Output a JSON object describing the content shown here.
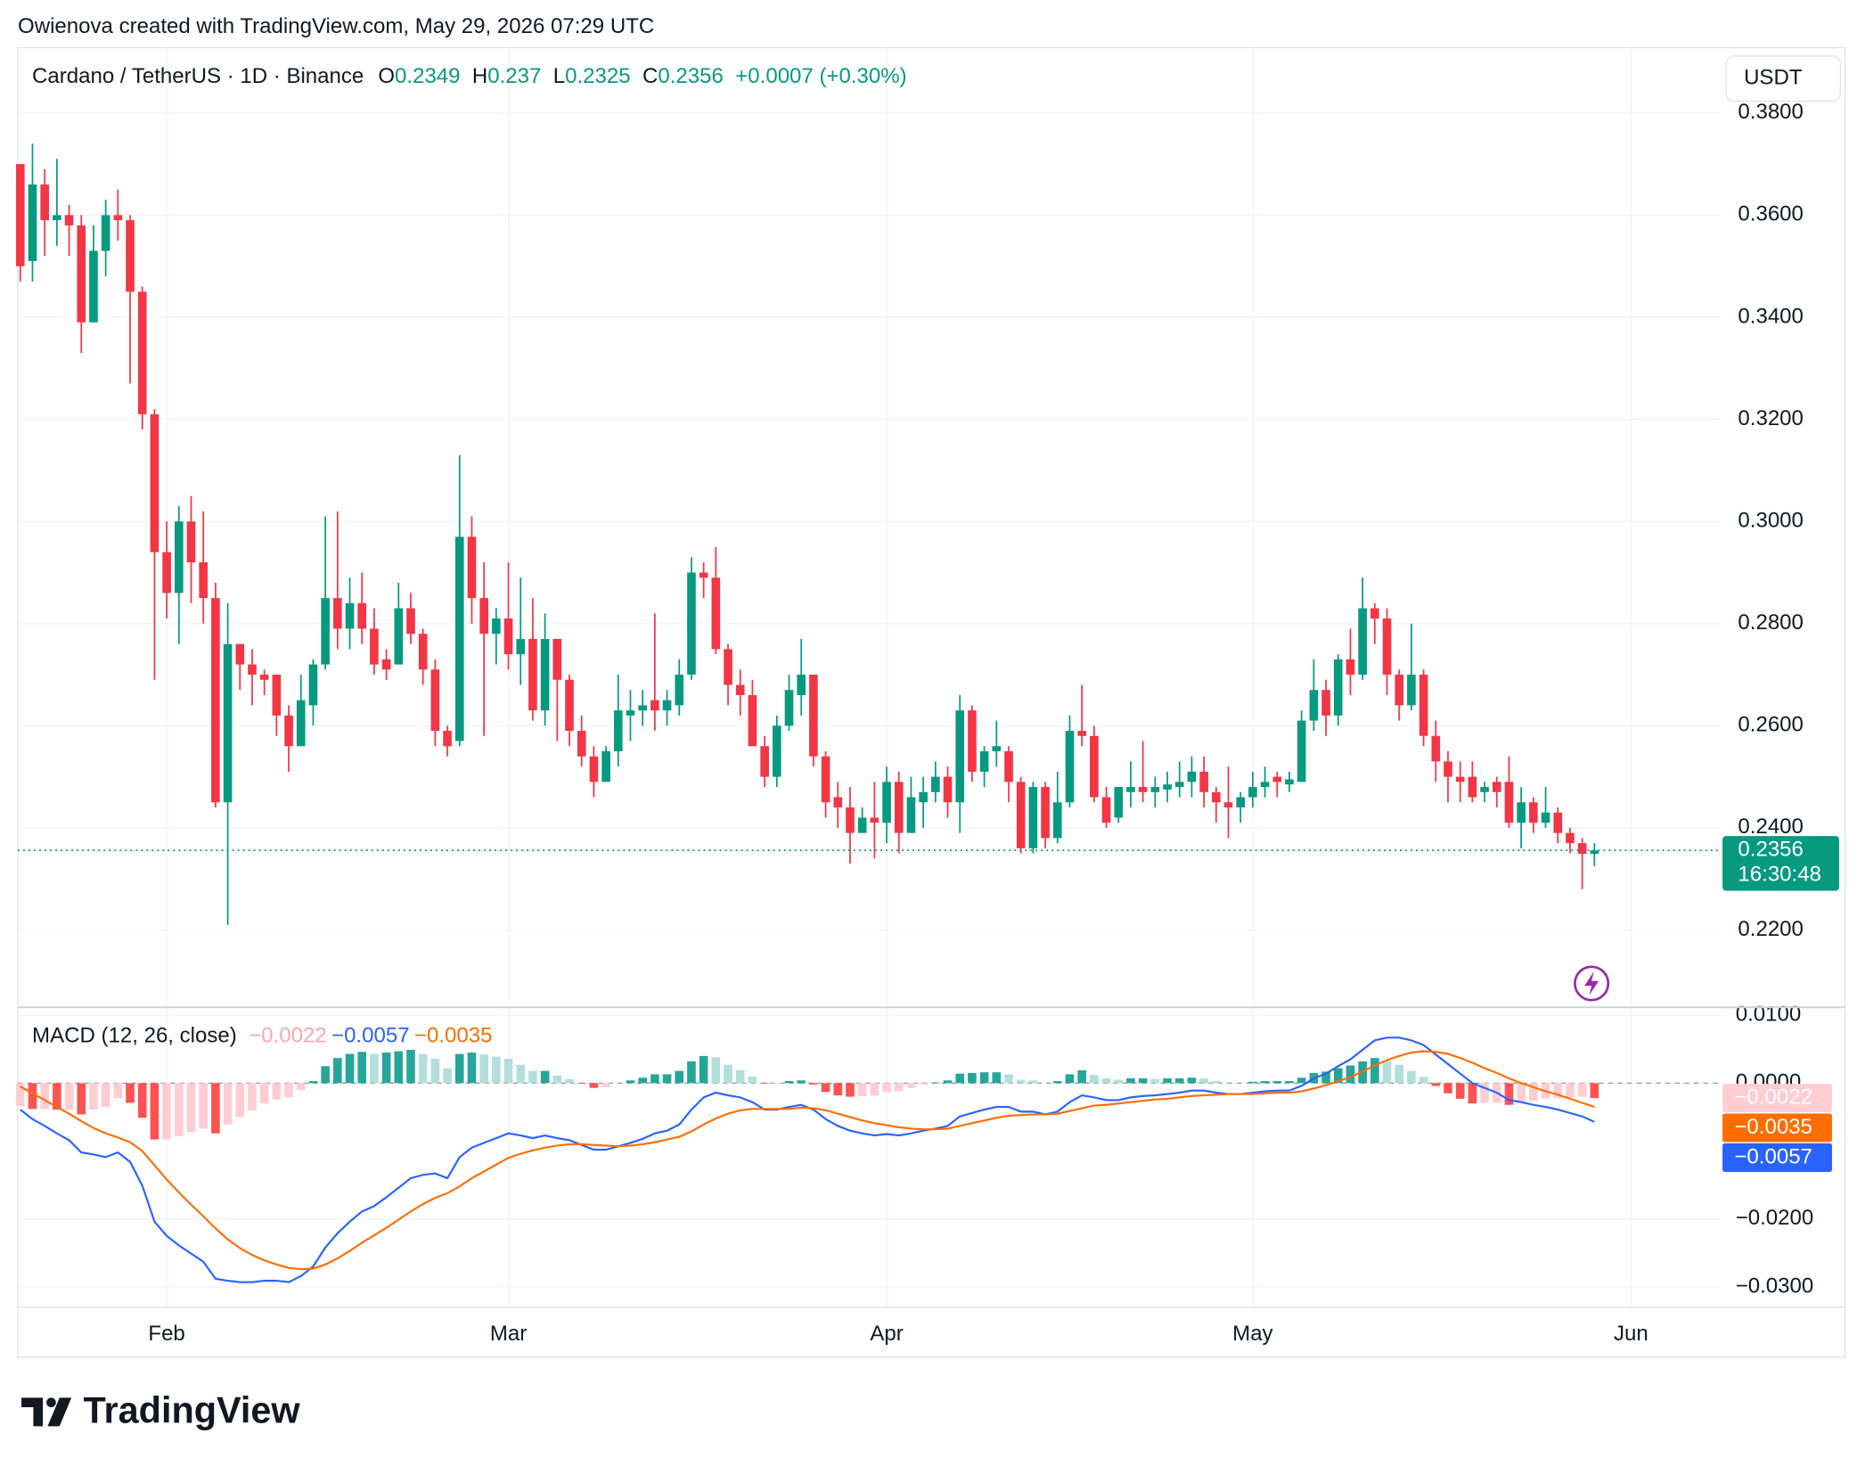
{
  "chart_data": {
    "type": "candlestick",
    "header": "Owienova created with TradingView.com, May 29, 2026 07:29 UTC",
    "title": "Cardano / TetherUS · 1D · Binance",
    "ohlc_labels": [
      "O",
      "H",
      "L",
      "C"
    ],
    "change_label": "+0.0007 (+0.30%)",
    "currency": "USDT",
    "countdown": "16:30:48",
    "brand": "TradingView",
    "up_color": "#089981",
    "down_color": "#f23645",
    "grid": true,
    "xlim": [
      -0.2,
      139.3
    ],
    "xticks": [
      {
        "value": 12,
        "label": "Feb"
      },
      {
        "value": 40,
        "label": "Mar"
      },
      {
        "value": 71,
        "label": "Apr"
      },
      {
        "value": 101,
        "label": "May"
      },
      {
        "value": 132,
        "label": "Jun"
      }
    ],
    "ylim": [
      0.2051,
      0.3928
    ],
    "yticks": [
      {
        "value": 0.38,
        "label": "0.3800"
      },
      {
        "value": 0.36,
        "label": "0.3600"
      },
      {
        "value": 0.34,
        "label": "0.3400"
      },
      {
        "value": 0.32,
        "label": "0.3200"
      },
      {
        "value": 0.3,
        "label": "0.3000"
      },
      {
        "value": 0.28,
        "label": "0.2800"
      },
      {
        "value": 0.26,
        "label": "0.2600"
      },
      {
        "value": 0.24,
        "label": "0.2400"
      },
      {
        "value": 0.22,
        "label": "0.2200"
      }
    ],
    "open": [
      0.37,
      0.351,
      0.366,
      0.359,
      0.36,
      0.358,
      0.339,
      0.353,
      0.36,
      0.359,
      0.345,
      0.321,
      0.294,
      0.286,
      0.3,
      0.292,
      0.285,
      0.245,
      0.276,
      0.272,
      0.27,
      0.27,
      0.262,
      0.256,
      0.264,
      0.272,
      0.285,
      0.279,
      0.284,
      0.279,
      0.273,
      0.272,
      0.283,
      0.278,
      0.271,
      0.259,
      0.257,
      0.297,
      0.285,
      0.278,
      0.281,
      0.274,
      0.277,
      0.263,
      0.277,
      0.269,
      0.259,
      0.254,
      0.249,
      0.255,
      0.262,
      0.263,
      0.265,
      0.263,
      0.264,
      0.27,
      0.29,
      0.289,
      0.275,
      0.268,
      0.266,
      0.256,
      0.25,
      0.26,
      0.266,
      0.27,
      0.254,
      0.246,
      0.244,
      0.239,
      0.242,
      0.241,
      0.249,
      0.239,
      0.245,
      0.247,
      0.25,
      0.245,
      0.263,
      0.251,
      0.255,
      0.255,
      0.249,
      0.236,
      0.248,
      0.238,
      0.245,
      0.259,
      0.258,
      0.246,
      0.242,
      0.247,
      0.248,
      0.247,
      0.2475,
      0.248,
      0.249,
      0.251,
      0.247,
      0.245,
      0.244,
      0.246,
      0.248,
      0.25,
      0.2485,
      0.249,
      0.261,
      0.267,
      0.262,
      0.273,
      0.27,
      0.283,
      0.281,
      0.27,
      0.264,
      0.27,
      0.258,
      0.253,
      0.25,
      0.25,
      0.247,
      0.249,
      0.249,
      0.241,
      0.245,
      0.241,
      0.243,
      0.239,
      0.237,
      0.2349
    ],
    "high": [
      0.37,
      0.374,
      0.369,
      0.371,
      0.362,
      0.36,
      0.358,
      0.363,
      0.365,
      0.36,
      0.346,
      0.322,
      0.3,
      0.303,
      0.305,
      0.302,
      0.288,
      0.284,
      0.276,
      0.275,
      0.271,
      0.27,
      0.264,
      0.27,
      0.273,
      0.301,
      0.302,
      0.289,
      0.29,
      0.283,
      0.275,
      0.288,
      0.286,
      0.279,
      0.273,
      0.26,
      0.313,
      0.301,
      0.292,
      0.283,
      0.292,
      0.289,
      0.285,
      0.282,
      0.277,
      0.27,
      0.262,
      0.256,
      0.256,
      0.27,
      0.267,
      0.267,
      0.282,
      0.267,
      0.273,
      0.293,
      0.292,
      0.295,
      0.276,
      0.271,
      0.269,
      0.258,
      0.262,
      0.27,
      0.277,
      0.27,
      0.255,
      0.249,
      0.248,
      0.244,
      0.249,
      0.252,
      0.251,
      0.25,
      0.25,
      0.253,
      0.252,
      0.266,
      0.264,
      0.256,
      0.261,
      0.256,
      0.25,
      0.249,
      0.249,
      0.251,
      0.262,
      0.268,
      0.26,
      0.248,
      0.248,
      0.253,
      0.257,
      0.25,
      0.251,
      0.253,
      0.254,
      0.254,
      0.248,
      0.252,
      0.247,
      0.251,
      0.252,
      0.251,
      0.251,
      0.263,
      0.273,
      0.269,
      0.274,
      0.279,
      0.289,
      0.284,
      0.283,
      0.271,
      0.28,
      0.271,
      0.261,
      0.255,
      0.253,
      0.253,
      0.249,
      0.25,
      0.254,
      0.248,
      0.246,
      0.248,
      0.244,
      0.24,
      0.238,
      0.237
    ],
    "low": [
      0.347,
      0.347,
      0.352,
      0.354,
      0.352,
      0.333,
      0.339,
      0.348,
      0.355,
      0.327,
      0.318,
      0.269,
      0.281,
      0.276,
      0.284,
      0.28,
      0.244,
      0.221,
      0.267,
      0.264,
      0.266,
      0.258,
      0.251,
      0.256,
      0.26,
      0.271,
      0.275,
      0.275,
      0.276,
      0.27,
      0.269,
      0.272,
      0.276,
      0.268,
      0.256,
      0.254,
      0.256,
      0.28,
      0.258,
      0.272,
      0.271,
      0.268,
      0.261,
      0.26,
      0.257,
      0.256,
      0.252,
      0.246,
      0.249,
      0.252,
      0.257,
      0.26,
      0.259,
      0.26,
      0.262,
      0.269,
      0.285,
      0.274,
      0.264,
      0.262,
      0.256,
      0.248,
      0.248,
      0.259,
      0.262,
      0.252,
      0.242,
      0.24,
      0.233,
      0.239,
      0.234,
      0.237,
      0.235,
      0.239,
      0.24,
      0.245,
      0.242,
      0.239,
      0.249,
      0.248,
      0.252,
      0.245,
      0.235,
      0.235,
      0.236,
      0.237,
      0.244,
      0.256,
      0.245,
      0.24,
      0.241,
      0.244,
      0.245,
      0.244,
      0.245,
      0.246,
      0.246,
      0.244,
      0.241,
      0.238,
      0.241,
      0.244,
      0.246,
      0.246,
      0.247,
      0.249,
      0.259,
      0.258,
      0.26,
      0.266,
      0.269,
      0.276,
      0.266,
      0.261,
      0.263,
      0.256,
      0.249,
      0.245,
      0.245,
      0.245,
      0.245,
      0.244,
      0.24,
      0.236,
      0.239,
      0.24,
      0.237,
      0.235,
      0.228,
      0.2325
    ],
    "close": [
      0.35,
      0.366,
      0.359,
      0.36,
      0.358,
      0.339,
      0.353,
      0.36,
      0.359,
      0.345,
      0.321,
      0.294,
      0.286,
      0.3,
      0.292,
      0.285,
      0.245,
      0.276,
      0.272,
      0.27,
      0.269,
      0.262,
      0.256,
      0.265,
      0.272,
      0.285,
      0.279,
      0.284,
      0.279,
      0.272,
      0.271,
      0.283,
      0.278,
      0.271,
      0.259,
      0.256,
      0.297,
      0.285,
      0.278,
      0.281,
      0.274,
      0.277,
      0.263,
      0.277,
      0.269,
      0.259,
      0.254,
      0.249,
      0.255,
      0.263,
      0.263,
      0.264,
      0.263,
      0.265,
      0.27,
      0.29,
      0.289,
      0.275,
      0.268,
      0.266,
      0.256,
      0.25,
      0.26,
      0.267,
      0.27,
      0.254,
      0.245,
      0.244,
      0.239,
      0.242,
      0.241,
      0.249,
      0.239,
      0.246,
      0.247,
      0.25,
      0.245,
      0.263,
      0.251,
      0.255,
      0.256,
      0.249,
      0.236,
      0.248,
      0.238,
      0.245,
      0.259,
      0.258,
      0.246,
      0.241,
      0.248,
      0.248,
      0.247,
      0.248,
      0.2485,
      0.249,
      0.251,
      0.247,
      0.245,
      0.244,
      0.246,
      0.248,
      0.249,
      0.249,
      0.2495,
      0.261,
      0.267,
      0.262,
      0.273,
      0.27,
      0.283,
      0.281,
      0.27,
      0.264,
      0.27,
      0.258,
      0.253,
      0.25,
      0.249,
      0.246,
      0.248,
      0.247,
      0.241,
      0.245,
      0.241,
      0.243,
      0.239,
      0.237,
      0.2349,
      0.2356
    ],
    "indicator": {
      "title": "MACD (12, 26, close)",
      "ylim": [
        -0.033,
        0.011
      ],
      "yticks": [
        {
          "value": 0.01,
          "label": "0.0100"
        },
        {
          "value": 0,
          "label": "0.0000"
        },
        {
          "value": -0.02,
          "label": "−0.0200"
        },
        {
          "value": -0.03,
          "label": "−0.0300"
        }
      ],
      "series": [
        {
          "type": "histogram",
          "colors": [
            "#26a69a",
            "#b2dfdb",
            "#ff5252",
            "#ffcdd2"
          ],
          "color": "#f7a9b4",
          "last_label": "−0.0022",
          "values": [
            -0.0034,
            -0.0038,
            -0.0038,
            -0.0039,
            -0.0039,
            -0.0046,
            -0.0039,
            -0.0035,
            -0.0022,
            -0.0029,
            -0.0051,
            -0.0083,
            -0.0083,
            -0.0078,
            -0.0072,
            -0.0067,
            -0.0074,
            -0.0061,
            -0.005,
            -0.004,
            -0.003,
            -0.0024,
            -0.0021,
            -0.001,
            0.0003,
            0.0025,
            0.0037,
            0.0043,
            0.0046,
            0.0043,
            0.0045,
            0.0047,
            0.0049,
            0.0043,
            0.0036,
            0.0022,
            0.0043,
            0.0045,
            0.0042,
            0.0039,
            0.0036,
            0.0027,
            0.0018,
            0.0018,
            0.0011,
            0.0006,
            -0.0001,
            -0.0007,
            -0.0006,
            0.0,
            0.0004,
            0.0008,
            0.0013,
            0.0013,
            0.0018,
            0.0032,
            0.004,
            0.0038,
            0.0027,
            0.0019,
            0.001,
            -0.0001,
            -0.0001,
            0.0003,
            0.0004,
            -0.0002,
            -0.0013,
            -0.0018,
            -0.002,
            -0.0019,
            -0.0018,
            -0.0013,
            -0.0012,
            -0.0007,
            -0.0002,
            0.0001,
            0.0004,
            0.0014,
            0.0015,
            0.0016,
            0.0016,
            0.0013,
            0.0005,
            0.0004,
            0.0,
            0.0003,
            0.0013,
            0.0019,
            0.0012,
            0.0007,
            0.0005,
            0.0007,
            0.0007,
            0.0006,
            0.0007,
            0.0007,
            0.0008,
            0.0007,
            0.0003,
            0.0,
            0.0,
            0.0002,
            0.0003,
            0.0003,
            0.0003,
            0.0008,
            0.0015,
            0.0017,
            0.0022,
            0.0026,
            0.0032,
            0.0037,
            0.0033,
            0.0027,
            0.0018,
            0.0009,
            -0.0004,
            -0.0015,
            -0.0023,
            -0.003,
            -0.0029,
            -0.0029,
            -0.0032,
            -0.0028,
            -0.0026,
            -0.0023,
            -0.0022,
            -0.0021,
            -0.002,
            -0.0022
          ]
        },
        {
          "type": "line",
          "color": "#2962ff",
          "last_label": "−0.0057",
          "values": [
            -0.0039,
            -0.0053,
            -0.0063,
            -0.0074,
            -0.0084,
            -0.0102,
            -0.0105,
            -0.0109,
            -0.0102,
            -0.0116,
            -0.0151,
            -0.0204,
            -0.0225,
            -0.0239,
            -0.0251,
            -0.0263,
            -0.0288,
            -0.0291,
            -0.0293,
            -0.0293,
            -0.0291,
            -0.0291,
            -0.0293,
            -0.0284,
            -0.027,
            -0.0242,
            -0.0221,
            -0.0204,
            -0.0189,
            -0.0181,
            -0.0168,
            -0.0154,
            -0.014,
            -0.0135,
            -0.0133,
            -0.014,
            -0.0109,
            -0.0095,
            -0.0088,
            -0.0081,
            -0.0074,
            -0.0077,
            -0.0081,
            -0.0077,
            -0.0081,
            -0.0084,
            -0.0091,
            -0.0098,
            -0.0098,
            -0.0093,
            -0.0088,
            -0.0082,
            -0.0074,
            -0.007,
            -0.0061,
            -0.0039,
            -0.0021,
            -0.0014,
            -0.0018,
            -0.0021,
            -0.0028,
            -0.0039,
            -0.0039,
            -0.0035,
            -0.0032,
            -0.0039,
            -0.0053,
            -0.0063,
            -0.007,
            -0.0074,
            -0.0077,
            -0.0075,
            -0.0077,
            -0.0074,
            -0.007,
            -0.0067,
            -0.0063,
            -0.0049,
            -0.0044,
            -0.0039,
            -0.0035,
            -0.0035,
            -0.0042,
            -0.0042,
            -0.0046,
            -0.0042,
            -0.0028,
            -0.0018,
            -0.0021,
            -0.0025,
            -0.0025,
            -0.0021,
            -0.0019,
            -0.0018,
            -0.0016,
            -0.0014,
            -0.0011,
            -0.0011,
            -0.0014,
            -0.0016,
            -0.0016,
            -0.0014,
            -0.0012,
            -0.0011,
            -0.0011,
            -0.0004,
            0.0007,
            0.0014,
            0.0025,
            0.0035,
            0.0049,
            0.0063,
            0.0067,
            0.0067,
            0.0063,
            0.0056,
            0.0042,
            0.0028,
            0.0014,
            0.0,
            -0.0007,
            -0.0014,
            -0.0025,
            -0.0028,
            -0.0032,
            -0.0035,
            -0.0039,
            -0.0044,
            -0.0049,
            -0.0057
          ]
        },
        {
          "type": "line",
          "color": "#ff6d00",
          "last_label": "−0.0035",
          "values": [
            -0.0005,
            -0.0015,
            -0.0025,
            -0.0035,
            -0.0045,
            -0.0056,
            -0.0066,
            -0.0074,
            -0.008,
            -0.0087,
            -0.01,
            -0.0121,
            -0.0142,
            -0.0161,
            -0.0179,
            -0.0196,
            -0.0214,
            -0.023,
            -0.0243,
            -0.0253,
            -0.0261,
            -0.0267,
            -0.0272,
            -0.0274,
            -0.0273,
            -0.0267,
            -0.0258,
            -0.0247,
            -0.0235,
            -0.0224,
            -0.0213,
            -0.0201,
            -0.0189,
            -0.0178,
            -0.0169,
            -0.0162,
            -0.0152,
            -0.014,
            -0.013,
            -0.012,
            -0.011,
            -0.0104,
            -0.0099,
            -0.0095,
            -0.0092,
            -0.009,
            -0.009,
            -0.0091,
            -0.0092,
            -0.0093,
            -0.0092,
            -0.009,
            -0.0087,
            -0.0083,
            -0.0079,
            -0.0071,
            -0.0061,
            -0.0052,
            -0.0045,
            -0.004,
            -0.0038,
            -0.0038,
            -0.0038,
            -0.0038,
            -0.0036,
            -0.0037,
            -0.004,
            -0.0045,
            -0.005,
            -0.0055,
            -0.0059,
            -0.0062,
            -0.0065,
            -0.0067,
            -0.0068,
            -0.0068,
            -0.0067,
            -0.0063,
            -0.0059,
            -0.0055,
            -0.0051,
            -0.0048,
            -0.0047,
            -0.0046,
            -0.0046,
            -0.0045,
            -0.0041,
            -0.0037,
            -0.0033,
            -0.0032,
            -0.003,
            -0.0028,
            -0.0026,
            -0.0024,
            -0.0023,
            -0.0021,
            -0.0019,
            -0.0018,
            -0.0017,
            -0.0016,
            -0.0016,
            -0.0016,
            -0.0015,
            -0.0014,
            -0.0014,
            -0.0012,
            -0.0008,
            -0.0003,
            0.0003,
            0.0009,
            0.0017,
            0.0026,
            0.0034,
            0.004,
            0.0045,
            0.0047,
            0.0046,
            0.0043,
            0.0037,
            0.003,
            0.0022,
            0.0015,
            0.0007,
            0.0,
            -0.0006,
            -0.0012,
            -0.0017,
            -0.0023,
            -0.0029,
            -0.0035
          ]
        }
      ]
    }
  }
}
